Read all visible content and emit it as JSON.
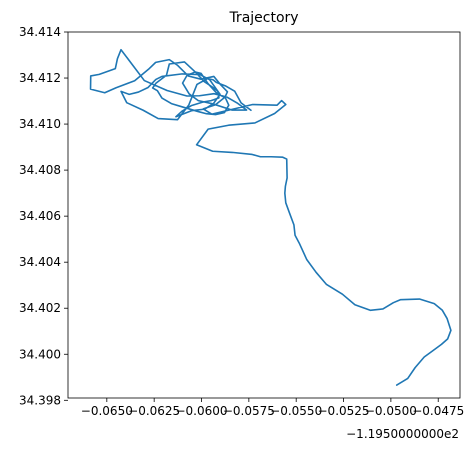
{
  "chart_data": {
    "type": "line",
    "title": "Trajectory",
    "xlabel": "",
    "ylabel": "",
    "x_offset_label": "−1.1950000000e2",
    "xlim": [
      -0.06705,
      -0.04635
    ],
    "ylim": [
      34.3981,
      34.414
    ],
    "x_ticks": [
      -0.065,
      -0.0625,
      -0.06,
      -0.0575,
      -0.055,
      -0.0525,
      -0.05,
      -0.0475
    ],
    "x_tick_labels": [
      "−0.0650",
      "−0.0625",
      "−0.0600",
      "−0.0575",
      "−0.0550",
      "−0.0525",
      "−0.0500",
      "−0.0475"
    ],
    "y_ticks": [
      34.398,
      34.4,
      34.402,
      34.404,
      34.406,
      34.408,
      34.41,
      34.412,
      34.414
    ],
    "y_tick_labels": [
      "34.398",
      "34.400",
      "34.402",
      "34.404",
      "34.406",
      "34.408",
      "34.410",
      "34.412",
      "34.414"
    ],
    "grid": false,
    "color": "#1f77b4",
    "series": [
      {
        "x": [
          -0.04969,
          -0.04911,
          -0.04872,
          -0.04824,
          -0.04776,
          -0.04733,
          -0.047,
          -0.04683,
          -0.04703,
          -0.04729,
          -0.04771,
          -0.04849,
          -0.0495,
          -0.04987,
          -0.05042,
          -0.05109,
          -0.0519,
          -0.05256,
          -0.05341,
          -0.05395,
          -0.05444,
          -0.05484,
          -0.05506,
          -0.05512,
          -0.05535,
          -0.05555,
          -0.0556,
          -0.05557,
          -0.05548,
          -0.0555,
          -0.05571,
          -0.05632,
          -0.05689,
          -0.05732,
          -0.05838,
          -0.05941,
          -0.06026,
          -0.05965,
          -0.05857,
          -0.05718,
          -0.05614,
          -0.05555,
          -0.05577,
          -0.05601,
          -0.0573,
          -0.05864,
          -0.05945,
          -0.05991,
          -0.05926,
          -0.05876,
          -0.05863,
          -0.05899,
          -0.05935,
          -0.06003,
          -0.0607,
          -0.06126,
          -0.0617,
          -0.06242,
          -0.0628,
          -0.06353,
          -0.06451,
          -0.06511,
          -0.06586,
          -0.06585,
          -0.0654,
          -0.06455,
          -0.06444,
          -0.06425,
          -0.06302,
          -0.06182,
          -0.06077,
          -0.06011,
          -0.05934,
          -0.05865,
          -0.05809,
          -0.05762,
          -0.0584,
          -0.05941,
          -0.06017,
          -0.06065,
          -0.061,
          -0.06077,
          -0.06033,
          -0.06002,
          -0.05966,
          -0.05917,
          -0.05874,
          -0.05856,
          -0.05879,
          -0.05926,
          -0.05974,
          -0.0602,
          -0.06103,
          -0.06159,
          -0.06209,
          -0.06233,
          -0.06258,
          -0.0624,
          -0.06185,
          -0.0617,
          -0.0609,
          -0.06031,
          -0.05985,
          -0.05941,
          -0.05914,
          -0.05908,
          -0.05949,
          -0.05996,
          -0.06054,
          -0.06103,
          -0.06135,
          -0.06053,
          -0.05983,
          -0.05937,
          -0.05902,
          -0.05957,
          -0.06009,
          -0.06102,
          -0.06209,
          -0.06241,
          -0.06282,
          -0.06333,
          -0.06382,
          -0.06425,
          -0.06395,
          -0.06308,
          -0.06229,
          -0.06127,
          -0.06067,
          -0.06024,
          -0.05968,
          -0.05938,
          -0.05922,
          -0.05874,
          -0.05825,
          -0.05791,
          -0.05739
        ],
        "y": [
          34.39866,
          34.39895,
          34.39942,
          34.39988,
          34.40017,
          34.40043,
          34.40067,
          34.40104,
          34.40155,
          34.40192,
          34.4022,
          34.4024,
          34.40237,
          34.40224,
          34.40197,
          34.40191,
          34.40215,
          34.40261,
          34.40304,
          34.40356,
          34.40411,
          34.40483,
          34.40517,
          34.40562,
          34.40613,
          34.40658,
          34.407,
          34.4073,
          34.40766,
          34.40848,
          34.40856,
          34.40858,
          34.40858,
          34.40868,
          34.40877,
          34.40882,
          34.4091,
          34.40978,
          34.40995,
          34.41005,
          34.41046,
          34.41085,
          34.41102,
          34.41082,
          34.41085,
          34.41059,
          34.41043,
          34.41066,
          34.41084,
          34.41117,
          34.4114,
          34.41171,
          34.41207,
          34.41195,
          34.41209,
          34.41255,
          34.4128,
          34.41268,
          34.41238,
          34.41188,
          34.41158,
          34.41136,
          34.41152,
          34.41209,
          34.41216,
          34.41241,
          34.41284,
          34.41323,
          34.41189,
          34.41146,
          34.41122,
          34.41123,
          34.41132,
          34.41117,
          34.4109,
          34.41061,
          34.41061,
          34.41088,
          34.41102,
          34.41131,
          34.41178,
          34.41211,
          34.41226,
          34.4122,
          34.41176,
          34.41132,
          34.41114,
          34.41082,
          34.4105,
          34.41041,
          34.41045,
          34.41055,
          34.41075,
          34.41089,
          34.41113,
          34.41145,
          34.41157,
          34.41178,
          34.41212,
          34.41261,
          34.4127,
          34.41225,
          34.41184,
          34.4116,
          34.41143,
          34.41114,
          34.41102,
          34.41095,
          34.4108,
          34.41056,
          34.41032,
          34.41058,
          34.41065,
          34.41089,
          34.41129,
          34.41193,
          34.41215,
          34.41218,
          34.41207,
          34.41194,
          34.41159,
          34.41139,
          34.41129,
          34.41142,
          34.41093,
          34.4106,
          34.41024,
          34.41019,
          34.41083,
          34.41172,
          34.41198,
          34.41192,
          34.41181,
          34.41166,
          34.41143,
          34.41092,
          34.4106
        ]
      }
    ]
  }
}
